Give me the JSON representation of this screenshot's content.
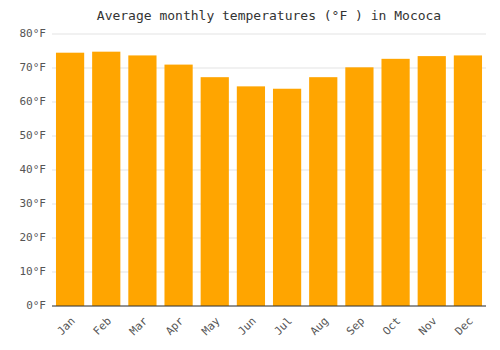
{
  "chart_data": {
    "type": "bar",
    "title": "Average monthly temperatures (°F ) in Mococa",
    "categories": [
      "Jan",
      "Feb",
      "Mar",
      "Apr",
      "May",
      "Jun",
      "Jul",
      "Aug",
      "Sep",
      "Oct",
      "Nov",
      "Dec"
    ],
    "values": [
      74.5,
      74.8,
      73.7,
      71.0,
      67.3,
      64.6,
      63.9,
      67.3,
      70.2,
      72.7,
      73.5,
      73.7
    ],
    "color": "#FFA500",
    "ylim": [
      0,
      80
    ],
    "yticks": [
      {
        "value": 0,
        "label": "0°F"
      },
      {
        "value": 10,
        "label": "10°F"
      },
      {
        "value": 20,
        "label": "20°F"
      },
      {
        "value": 30,
        "label": "30°F"
      },
      {
        "value": 40,
        "label": "40°F"
      },
      {
        "value": 50,
        "label": "50°F"
      },
      {
        "value": 60,
        "label": "60°F"
      },
      {
        "value": 70,
        "label": "70°F"
      },
      {
        "value": 80,
        "label": "80°F"
      }
    ],
    "grid": true
  }
}
